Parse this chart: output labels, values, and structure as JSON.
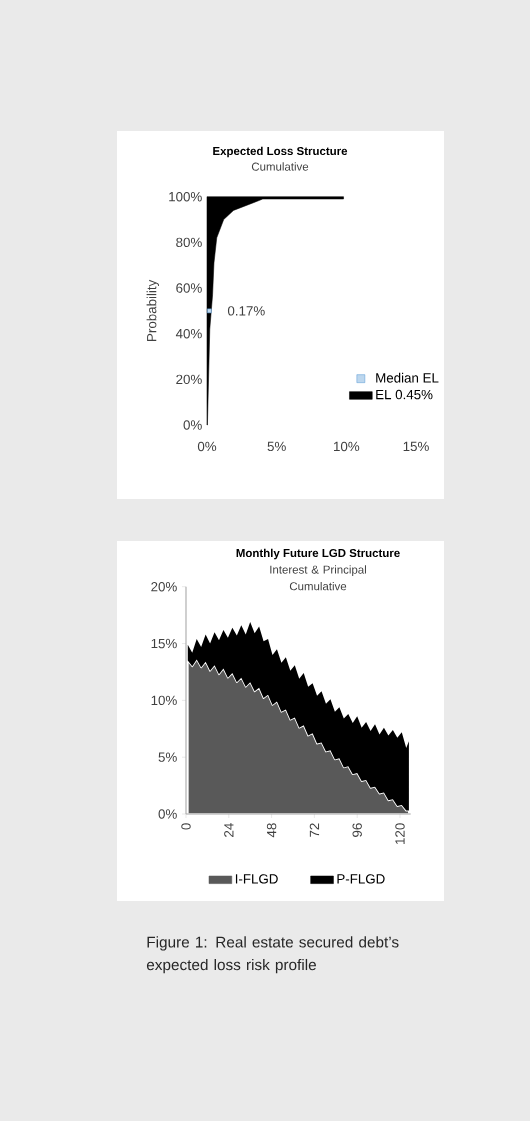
{
  "chart_data": [
    {
      "type": "area",
      "title": "Expected Loss Structure",
      "subtitle": "Cumulative",
      "ylabel": "Probability",
      "series": [
        {
          "name": "Median EL",
          "type": "scatter",
          "color": "#5b9bd5",
          "marker": "square",
          "x": [
            0.17
          ],
          "values": [
            50
          ]
        },
        {
          "name": "EL 0.45%",
          "type": "area",
          "color": "#000000",
          "x": [
            0,
            0.03,
            0.2,
            0.4,
            0.5,
            0.7,
            1.2,
            1.9,
            3.6,
            4.0,
            9.8,
            9.8,
            0
          ],
          "values": [
            0,
            0,
            42,
            57,
            71,
            82,
            90,
            94,
            98,
            99,
            99,
            100,
            100
          ]
        }
      ],
      "annotations": [
        {
          "text": "0.17%",
          "x": 0.17,
          "y": 50
        }
      ],
      "xlim": [
        0,
        15
      ],
      "ylim": [
        0,
        100
      ],
      "xticks": [
        {
          "value": 0,
          "label": "0%"
        },
        {
          "value": 5,
          "label": "5%"
        },
        {
          "value": 10,
          "label": "10%"
        },
        {
          "value": 15,
          "label": "15%"
        }
      ],
      "yticks": [
        {
          "value": 0,
          "label": "0%"
        },
        {
          "value": 20,
          "label": "20%"
        },
        {
          "value": 40,
          "label": "40%"
        },
        {
          "value": 60,
          "label": "60%"
        },
        {
          "value": 80,
          "label": "80%"
        },
        {
          "value": 100,
          "label": "100%"
        }
      ],
      "legend": "right"
    },
    {
      "type": "area",
      "title": "Monthly Future LGD Structure",
      "subtitle": "Interest & Principal Cumulative",
      "stacked": true,
      "x": [
        1,
        3.5,
        6,
        8.5,
        11,
        13.5,
        16,
        18.5,
        21,
        23.5,
        26,
        28.5,
        31,
        33.5,
        36,
        38.5,
        41,
        43.5,
        46,
        48.5,
        51,
        53.5,
        56,
        58.5,
        61,
        63.5,
        66,
        68.5,
        71,
        73.5,
        76,
        78.5,
        81,
        83.5,
        86,
        88.5,
        91,
        93.5,
        96,
        98.5,
        101,
        103.5,
        106,
        108.5,
        111,
        113.5,
        116,
        118.5,
        121,
        123.5,
        125
      ],
      "series": [
        {
          "name": "I-FLGD",
          "color": "#595959",
          "values": [
            13.5,
            13.0,
            13.6,
            12.9,
            13.4,
            12.6,
            13.1,
            12.3,
            12.8,
            12.0,
            12.4,
            11.6,
            12.0,
            11.2,
            11.6,
            10.8,
            11.1,
            10.2,
            10.5,
            9.6,
            9.9,
            9.0,
            9.2,
            8.3,
            8.5,
            7.6,
            7.8,
            6.9,
            7.1,
            6.2,
            6.3,
            5.5,
            5.6,
            4.8,
            4.9,
            4.1,
            4.2,
            3.5,
            3.6,
            2.9,
            3.0,
            2.3,
            2.4,
            1.8,
            1.9,
            1.2,
            1.3,
            0.7,
            0.8,
            0.3,
            0.3
          ]
        },
        {
          "name": "P-FLGD",
          "color": "#000000",
          "values": [
            1.4,
            1.2,
            1.8,
            1.8,
            2.4,
            2.4,
            2.9,
            3.0,
            3.4,
            3.5,
            4.0,
            4.1,
            4.6,
            4.6,
            5.3,
            5.1,
            5.4,
            5.0,
            4.9,
            4.4,
            4.6,
            4.3,
            4.6,
            4.3,
            4.6,
            4.3,
            4.6,
            4.3,
            4.4,
            4.2,
            4.5,
            4.2,
            4.5,
            4.2,
            4.5,
            4.3,
            4.6,
            4.5,
            5.0,
            4.7,
            5.1,
            5.0,
            5.5,
            5.2,
            5.7,
            5.7,
            6.1,
            6.0,
            6.4,
            5.5,
            6.1
          ]
        }
      ],
      "annotations": [
        "Figure 1: Real estate secured debt’s expected loss risk profile"
      ],
      "xlim": [
        0,
        126
      ],
      "ylim": [
        0,
        20
      ],
      "xticks": [
        0,
        24,
        48,
        72,
        96,
        120
      ],
      "yticks": [
        {
          "value": 0,
          "label": "0%"
        },
        {
          "value": 5,
          "label": "5%"
        },
        {
          "value": 10,
          "label": "10%"
        },
        {
          "value": 15,
          "label": "15%"
        },
        {
          "value": 20,
          "label": "20%"
        }
      ],
      "legend": "bottom"
    }
  ]
}
